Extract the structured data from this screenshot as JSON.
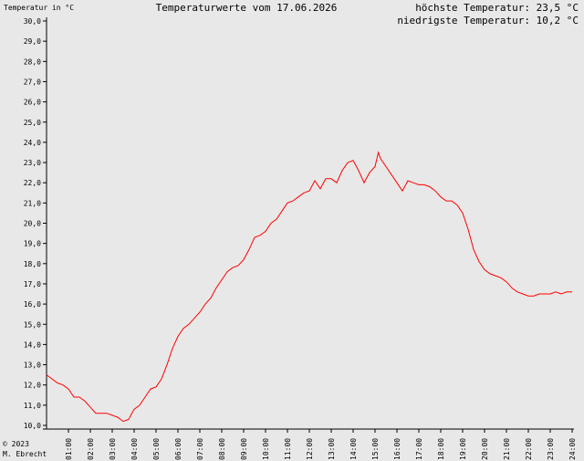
{
  "header": {
    "ylabel": "Temperatur in °C",
    "title": "Temperaturwerte vom 17.06.2026",
    "max_text": "höchste Temperatur: 23,5 °C",
    "min_text": "niedrigste Temperatur: 10,2 °C"
  },
  "footer": {
    "copyright": "© 2023",
    "author": "M. Ebrecht"
  },
  "chart_data": {
    "type": "line",
    "title": "Temperaturwerte vom 17.06.2026",
    "ylabel": "Temperatur in °C",
    "xlabel": "",
    "ylim": [
      10,
      30
    ],
    "xlim": [
      0,
      24
    ],
    "grid": false,
    "line_color": "#ff0000",
    "yticks": [
      10,
      11,
      12,
      13,
      14,
      15,
      16,
      17,
      18,
      19,
      20,
      21,
      22,
      23,
      24,
      25,
      26,
      27,
      28,
      29,
      30
    ],
    "ytick_labels": [
      "10,0",
      "11,0",
      "12,0",
      "13,0",
      "14,0",
      "15,0",
      "16,0",
      "17,0",
      "18,0",
      "19,0",
      "20,0",
      "21,0",
      "22,0",
      "23,0",
      "24,0",
      "25,0",
      "26,0",
      "27,0",
      "28,0",
      "29,0",
      "30,0"
    ],
    "xticks": [
      1,
      2,
      3,
      4,
      5,
      6,
      7,
      8,
      9,
      10,
      11,
      12,
      13,
      14,
      15,
      16,
      17,
      18,
      19,
      20,
      21,
      22,
      23,
      24
    ],
    "xtick_labels": [
      "01:00",
      "02:00",
      "03:00",
      "04:00",
      "05:00",
      "06:00",
      "07:00",
      "08:00",
      "09:00",
      "10:00",
      "11:00",
      "12:00",
      "13:00",
      "14:00",
      "15:00",
      "16:00",
      "17:00",
      "18:00",
      "19:00",
      "20:00",
      "21:00",
      "22:00",
      "23:00",
      "24:00"
    ],
    "series": [
      {
        "x": [
          0,
          0.25,
          0.5,
          0.75,
          1.0,
          1.25,
          1.5,
          1.75,
          2.0,
          2.25,
          2.5,
          2.75,
          3.0,
          3.25,
          3.5,
          3.75,
          3.85,
          4.0,
          4.25,
          4.5,
          4.75,
          5.0,
          5.25,
          5.5,
          5.75,
          6.0,
          6.25,
          6.5,
          6.75,
          7.0,
          7.25,
          7.5,
          7.75,
          8.0,
          8.25,
          8.5,
          8.75,
          9.0,
          9.25,
          9.5,
          9.75,
          10.0,
          10.25,
          10.5,
          10.75,
          11.0,
          11.25,
          11.5,
          11.75,
          12.0,
          12.25,
          12.5,
          12.75,
          13.0,
          13.25,
          13.5,
          13.75,
          14.0,
          14.25,
          14.5,
          14.75,
          15.0,
          15.15,
          15.25,
          15.5,
          15.75,
          16.0,
          16.25,
          16.5,
          16.75,
          17.0,
          17.25,
          17.5,
          17.75,
          18.0,
          18.25,
          18.5,
          18.75,
          19.0,
          19.25,
          19.5,
          19.75,
          20.0,
          20.25,
          20.5,
          20.75,
          21.0,
          21.25,
          21.5,
          21.75,
          22.0,
          22.25,
          22.5,
          22.75,
          23.0,
          23.25,
          23.5,
          23.75,
          24.0
        ],
        "y": [
          12.5,
          12.3,
          12.1,
          12.0,
          11.8,
          11.4,
          11.4,
          11.2,
          10.9,
          10.6,
          10.6,
          10.6,
          10.5,
          10.4,
          10.2,
          10.3,
          10.5,
          10.8,
          11.0,
          11.4,
          11.8,
          11.9,
          12.3,
          13.0,
          13.8,
          14.4,
          14.8,
          15.0,
          15.3,
          15.6,
          16.0,
          16.3,
          16.8,
          17.2,
          17.6,
          17.8,
          17.9,
          18.2,
          18.7,
          19.3,
          19.4,
          19.6,
          20.0,
          20.2,
          20.6,
          21.0,
          21.1,
          21.3,
          21.5,
          21.6,
          22.1,
          21.7,
          22.2,
          22.2,
          22.0,
          22.6,
          23.0,
          23.1,
          22.6,
          22.0,
          22.5,
          22.8,
          23.5,
          23.2,
          22.8,
          22.4,
          22.0,
          21.6,
          22.1,
          22.0,
          21.9,
          21.9,
          21.8,
          21.6,
          21.3,
          21.1,
          21.1,
          20.9,
          20.5,
          19.7,
          18.7,
          18.1,
          17.7,
          17.5,
          17.4,
          17.3,
          17.1,
          16.8,
          16.6,
          16.5,
          16.4,
          16.4,
          16.5,
          16.5,
          16.5,
          16.6,
          16.5,
          16.6,
          16.6
        ]
      }
    ]
  }
}
